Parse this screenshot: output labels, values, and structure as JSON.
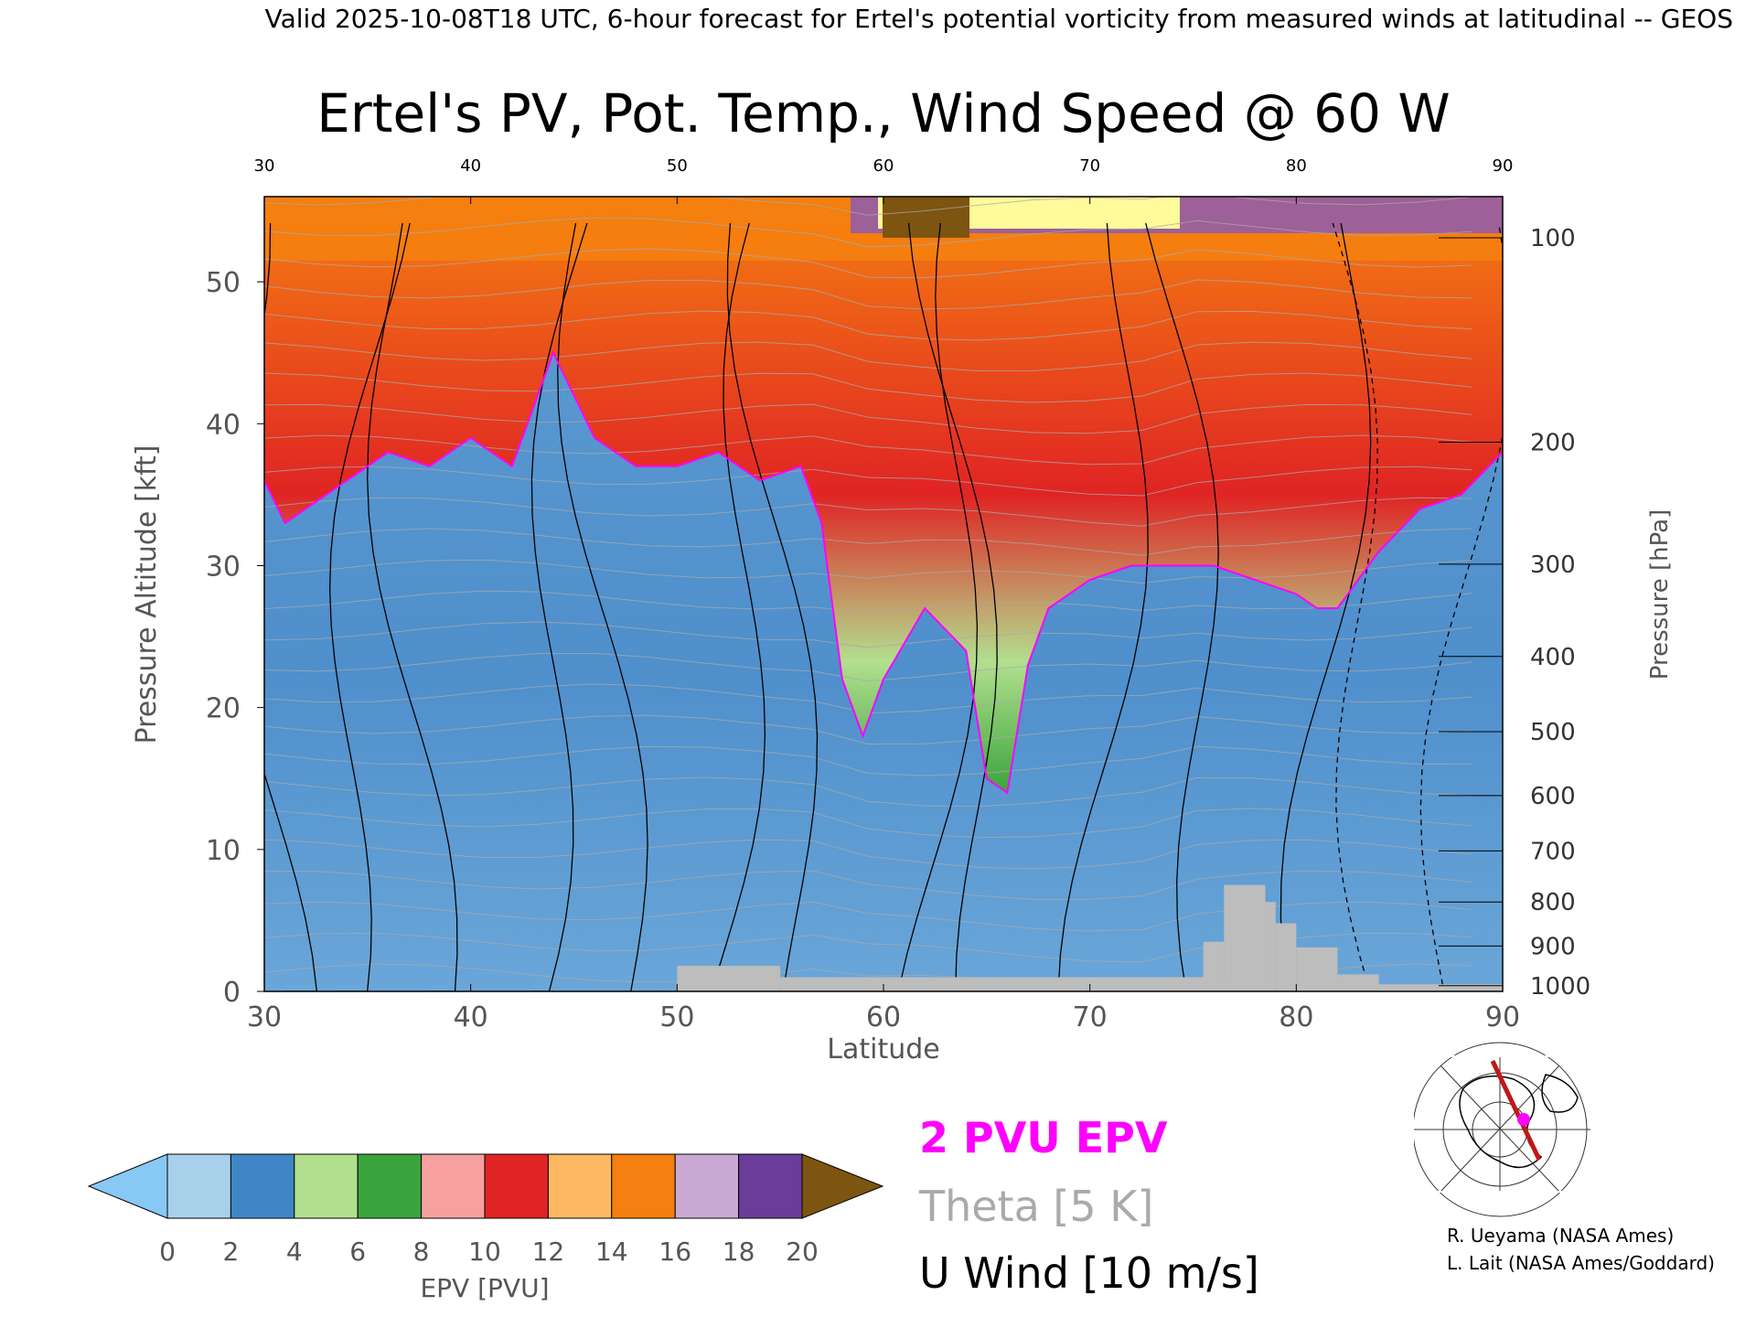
{
  "header": {
    "top_line": "Valid 2025-10-08T18 UTC, 6-hour forecast for Ertel's potential vorticity from measured winds at latitudinal -- GEOS",
    "title": "Ertel's PV, Pot. Temp., Wind Speed @ 60 W"
  },
  "chart_data": {
    "type": "heatmap",
    "title": "Ertel's PV, Pot. Temp., Wind Speed @ 60 W",
    "xlabel": "Latitude",
    "ylabel": "Pressure Altitude [kft]",
    "y2label": "Pressure [hPa]",
    "xlim": [
      30,
      90
    ],
    "ylim": [
      0,
      56
    ],
    "x_ticks": [
      "30",
      "40",
      "50",
      "60",
      "70",
      "80",
      "90"
    ],
    "x_ticks_top": [
      "30",
      "40",
      "50",
      "60",
      "70",
      "80",
      "90"
    ],
    "y_ticks": [
      "0",
      "10",
      "20",
      "30",
      "40",
      "50"
    ],
    "pressure_ticks": [
      {
        "label": "100",
        "kft": 53.1
      },
      {
        "label": "200",
        "kft": 38.7
      },
      {
        "label": "300",
        "kft": 30.1
      },
      {
        "label": "400",
        "kft": 23.6
      },
      {
        "label": "500",
        "kft": 18.3
      },
      {
        "label": "600",
        "kft": 13.8
      },
      {
        "label": "700",
        "kft": 9.9
      },
      {
        "label": "800",
        "kft": 6.3
      },
      {
        "label": "900",
        "kft": 3.2
      },
      {
        "label": "1000",
        "kft": 0.4
      }
    ],
    "epv_colorbar": {
      "label": "EPV [PVU]",
      "ticks": [
        "0",
        "2",
        "4",
        "6",
        "8",
        "10",
        "12",
        "14",
        "16",
        "18",
        "20"
      ],
      "under_color": "#88c8f5",
      "over_color": "#7d5410",
      "colors": [
        "#a9d0ea",
        "#3f86c6",
        "#b2df8e",
        "#3aa43c",
        "#f6a0a0",
        "#e02424",
        "#fdb861",
        "#f57f10",
        "#c8aad4",
        "#6a3d9a",
        "#fffa9a",
        "#8b5a1a"
      ]
    },
    "pv_2pvu_tropopause": {
      "latitude": [
        30,
        31,
        32,
        34,
        36,
        38,
        40,
        42,
        44,
        46,
        48,
        50,
        52,
        54,
        56,
        57,
        58,
        59,
        60,
        62,
        64,
        65,
        66,
        67,
        68,
        70,
        72,
        74,
        76,
        78,
        80,
        81,
        82,
        83,
        84,
        86,
        88,
        90
      ],
      "kft": [
        36,
        33,
        34,
        36,
        38,
        37,
        39,
        37,
        45,
        39,
        37,
        37,
        38,
        36,
        37,
        33,
        22,
        18,
        22,
        27,
        24,
        15,
        14,
        23,
        27,
        29,
        30,
        30,
        30,
        29,
        28,
        27,
        27,
        29,
        31,
        34,
        35,
        38
      ]
    },
    "u_wind_contours_m_s": [
      "-50",
      "-40",
      "-30",
      "-20",
      "-10",
      "0",
      "10",
      "20",
      "30",
      "40",
      "50"
    ],
    "theta_contour_interval_K": 5
  },
  "legend": {
    "pv_line": "2 PVU EPV",
    "theta": "Theta [5 K]",
    "wind": "U Wind [10 m/s]",
    "pv_color": "#ff00ff",
    "theta_color": "#aaaaaa",
    "wind_color": "#000000"
  },
  "credits": {
    "line1": "R. Ueyama (NASA Ames)",
    "line2": "L. Lait (NASA Ames/Goddard)"
  },
  "inset_map": {
    "path_color": "#c01818",
    "marker_color": "#ff00ff"
  }
}
